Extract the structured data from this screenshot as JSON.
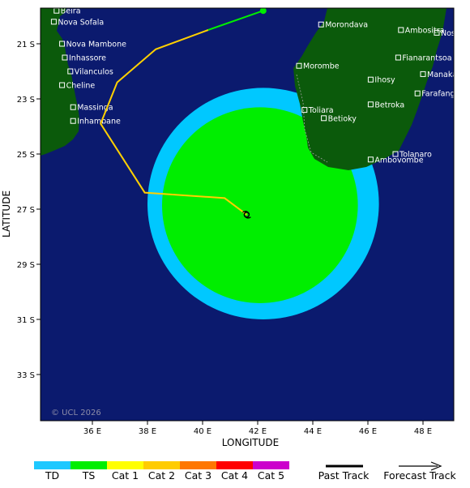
{
  "map": {
    "xlabel": "LONGITUDE",
    "ylabel": "LATITUDE",
    "x_ticks": [
      "36 E",
      "38 E",
      "40 E",
      "42 E",
      "44 E",
      "46 E",
      "48 E"
    ],
    "y_ticks": [
      "21 S",
      "23 S",
      "25 S",
      "27 S",
      "29 S",
      "31 S",
      "33 S"
    ],
    "copyright": "© UCL 2026",
    "colors": {
      "ocean": "#0b1a6e",
      "land": "#0b5a0b",
      "td_wind": "#00c8ff",
      "ts_wind": "#00ee00",
      "track_ts": "#00ee00",
      "track_cat1": "#ffd000",
      "border": "#a0a0a0"
    }
  },
  "places": [
    {
      "name": "Beira",
      "lon": 34.7,
      "lat": -19.8
    },
    {
      "name": "Nova Sofala",
      "lon": 34.6,
      "lat": -20.2
    },
    {
      "name": "Nova Mambone",
      "lon": 34.9,
      "lat": -21.0
    },
    {
      "name": "Inhassore",
      "lon": 35.0,
      "lat": -21.5
    },
    {
      "name": "Vilanculos",
      "lon": 35.2,
      "lat": -22.0
    },
    {
      "name": "Cheline",
      "lon": 34.9,
      "lat": -22.5
    },
    {
      "name": "Massinga",
      "lon": 35.3,
      "lat": -23.3
    },
    {
      "name": "Inhambane",
      "lon": 35.3,
      "lat": -23.8
    },
    {
      "name": "Morondava",
      "lon": 44.3,
      "lat": -20.3
    },
    {
      "name": "Ambositra",
      "lon": 47.2,
      "lat": -20.5
    },
    {
      "name": "Nosy-Varika",
      "lon": 48.5,
      "lat": -20.6
    },
    {
      "name": "Fianarantsoa",
      "lon": 47.1,
      "lat": -21.5
    },
    {
      "name": "Morombe",
      "lon": 43.5,
      "lat": -21.8
    },
    {
      "name": "Manakara",
      "lon": 48.0,
      "lat": -22.1
    },
    {
      "name": "Ihosy",
      "lon": 46.1,
      "lat": -22.3
    },
    {
      "name": "Farafangana",
      "lon": 47.8,
      "lat": -22.8
    },
    {
      "name": "Betroka",
      "lon": 46.1,
      "lat": -23.2
    },
    {
      "name": "Toliara",
      "lon": 43.7,
      "lat": -23.4
    },
    {
      "name": "Betioky",
      "lon": 44.4,
      "lat": -23.7
    },
    {
      "name": "Tolanaro",
      "lon": 47.0,
      "lat": -25.0
    },
    {
      "name": "Ambovombe",
      "lon": 46.1,
      "lat": -25.2
    }
  ],
  "track": {
    "segments": [
      {
        "category": "TS",
        "points": [
          [
            42.2,
            -19.8
          ],
          [
            40.2,
            -20.5
          ]
        ]
      },
      {
        "category": "Cat 1",
        "points": [
          [
            40.2,
            -20.5
          ],
          [
            38.3,
            -21.2
          ],
          [
            36.9,
            -22.4
          ],
          [
            36.3,
            -23.9
          ],
          [
            37.9,
            -26.4
          ],
          [
            40.8,
            -26.6
          ],
          [
            41.6,
            -27.2
          ]
        ]
      }
    ],
    "storm_position": [
      41.6,
      -27.2
    ]
  },
  "wind_fields": {
    "center": [
      42.2,
      -26.8
    ],
    "td_radius_deg": 4.2,
    "ts_radius_deg": 3.2
  },
  "legend": {
    "categories": [
      {
        "label": "TD",
        "color": "#1ec8ff"
      },
      {
        "label": "TS",
        "color": "#00ee00"
      },
      {
        "label": "Cat 1",
        "color": "#ffff00"
      },
      {
        "label": "Cat 2",
        "color": "#ffcc00"
      },
      {
        "label": "Cat 3",
        "color": "#ff7700"
      },
      {
        "label": "Cat 4",
        "color": "#ff0000"
      },
      {
        "label": "Cat 5",
        "color": "#cc00cc"
      }
    ],
    "past_track": "Past Track",
    "forecast_track": "Forecast Track"
  }
}
